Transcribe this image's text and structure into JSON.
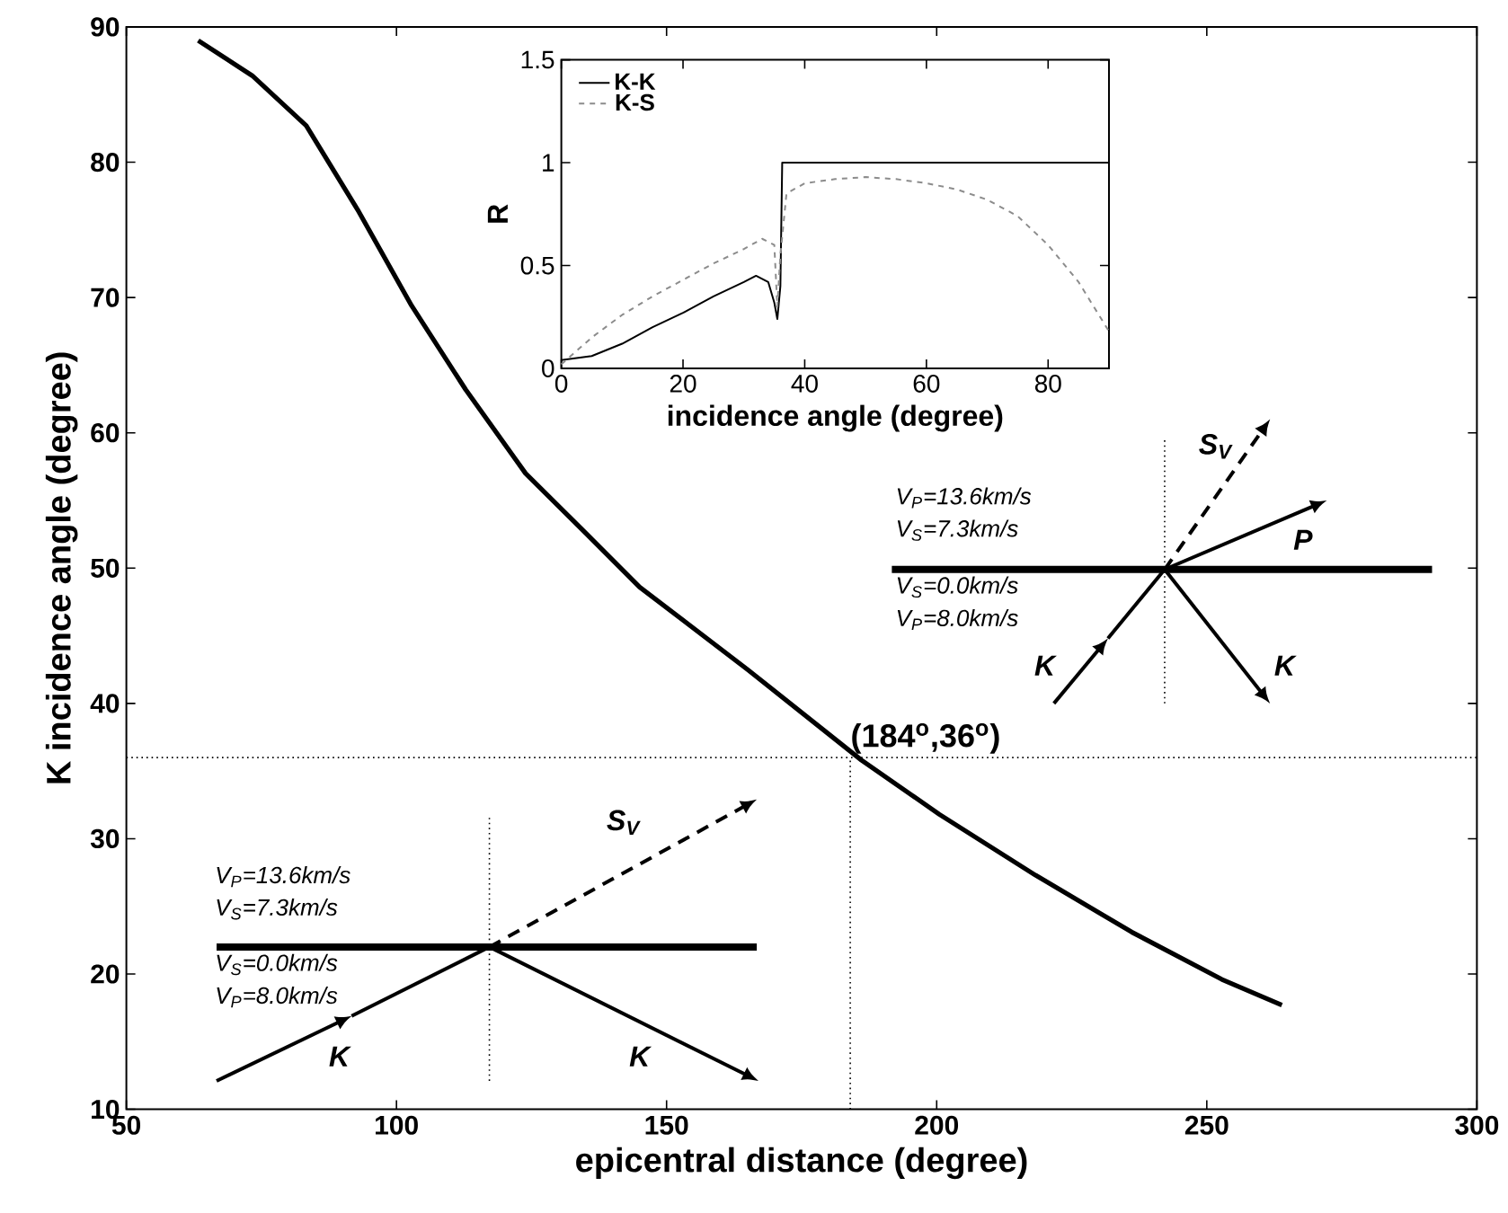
{
  "chart_data": [
    {
      "type": "line",
      "xlabel": "epicentral distance (degree)",
      "ylabel": "K incidence angle (degree)",
      "xlim": [
        50,
        300
      ],
      "ylim": [
        10,
        90
      ],
      "xticks": [
        50,
        100,
        150,
        200,
        250,
        300
      ],
      "yticks": [
        10,
        20,
        30,
        40,
        50,
        60,
        70,
        80,
        90
      ],
      "series": [
        {
          "color": "#000000",
          "x": [
            63.3,
            73.3,
            83.3,
            92.8,
            102.8,
            112.8,
            123.9,
            135,
            145,
            165,
            186.1,
            200.5,
            218.3,
            236.1,
            252.8,
            263.9
          ],
          "values": [
            89.0,
            86.4,
            82.7,
            76.5,
            69.4,
            63.2,
            57.0,
            52.6,
            48.6,
            42.5,
            35.8,
            31.8,
            27.3,
            23.1,
            19.6,
            17.7
          ]
        }
      ],
      "ref_lines": [
        {
          "axis": "y",
          "value": 36,
          "color": "#000000",
          "line_style": "dotted"
        },
        {
          "axis": "x",
          "value": 184,
          "color": "#000000",
          "line_style": "dotted"
        }
      ],
      "annotations": [
        {
          "text": "(184$^{o}$,36$^{o}$)",
          "x": 184,
          "y": 36
        },
        "V$_{P}$=13.6km/s",
        "V$_{S}$=7.3km/s",
        "V$_{S}$=0.0km/s",
        "V$_{P}$=8.0km/s",
        "K",
        "K",
        "S$_{V}$",
        "V$_{P}$=13.6km/s",
        "V$_{S}$=7.3km/s",
        "V$_{S}$=0.0km/s",
        "V$_{P}$=8.0km/s",
        "K",
        "K",
        "P",
        "S$_{V}$"
      ]
    },
    {
      "type": "line",
      "xlabel": "incidence angle (degree)",
      "ylabel": "R",
      "xlim": [
        0,
        90
      ],
      "ylim": [
        0,
        1.5
      ],
      "xticks": [
        0,
        20,
        40,
        60,
        80
      ],
      "yticks": [
        0,
        0.5,
        1,
        1.5
      ],
      "legend": "top left",
      "series": [
        {
          "name": "K-K",
          "color": "#000000",
          "line_style": "solid",
          "x": [
            0,
            5,
            10,
            15,
            20,
            25,
            30,
            32,
            34,
            35,
            35.5,
            36,
            36.3,
            40,
            90
          ],
          "values": [
            0.04,
            0.06,
            0.12,
            0.2,
            0.27,
            0.35,
            0.42,
            0.45,
            0.42,
            0.32,
            0.24,
            0.4,
            1.0,
            1.0,
            1.0
          ]
        },
        {
          "name": "K-S",
          "color": "#8c8c8c",
          "line_style": "dashed",
          "x": [
            0,
            5,
            10,
            15,
            20,
            25,
            30,
            33,
            35,
            35.5,
            36,
            37,
            40,
            45,
            50,
            55,
            60,
            65,
            70,
            75,
            80,
            85,
            90
          ],
          "values": [
            0.02,
            0.15,
            0.26,
            0.35,
            0.43,
            0.51,
            0.58,
            0.63,
            0.6,
            0.3,
            0.55,
            0.85,
            0.9,
            0.92,
            0.93,
            0.92,
            0.9,
            0.87,
            0.82,
            0.74,
            0.6,
            0.42,
            0.18
          ]
        }
      ]
    }
  ]
}
